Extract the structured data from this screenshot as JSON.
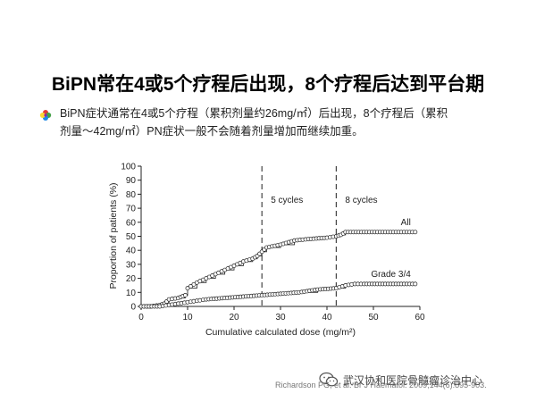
{
  "slide": {
    "title": "BiPN常在4或5个疗程后出现，8个疗程后达到平台期",
    "bullet_icon": "colorful-flower-bullet-icon",
    "bullet_lines": [
      "BiPN症状通常在4或5个疗程（累积剂量约26mg/㎡）后出现，8个疗程后（累积",
      "剂量～42mg/㎡）PN症状一般不会随着剂量增加而继续加重。"
    ],
    "citation": "Richardson PG, et al. Br J Haematol. 2009;144(6):895-903.",
    "watermark_text": "武汉协和医院骨髓瘤诊治中心",
    "watermark_icon": "wechat-icon"
  },
  "chart_data": {
    "type": "line",
    "title": "",
    "xlabel": "Cumulative calculated dose (mg/m²)",
    "ylabel": "Proportion of patients (%)",
    "xlim": [
      0,
      60
    ],
    "ylim": [
      0,
      100
    ],
    "x_ticks": [
      0,
      10,
      20,
      30,
      40,
      50,
      60
    ],
    "y_ticks": [
      0,
      10,
      20,
      30,
      40,
      50,
      60,
      70,
      80,
      90,
      100
    ],
    "marker": "open-circle",
    "grid": false,
    "reference_lines": [
      {
        "x": 26,
        "label": "5 cycles"
      },
      {
        "x": 42,
        "label": "8 cycles"
      }
    ],
    "series": [
      {
        "name": "All",
        "x": [
          0,
          2,
          4,
          5,
          6,
          8,
          9.5,
          10,
          12,
          14,
          16,
          18,
          20,
          22,
          24,
          25,
          26,
          27,
          30,
          33,
          36,
          40,
          42,
          43,
          44,
          48,
          52,
          56,
          59
        ],
        "y": [
          0,
          0,
          1,
          2,
          5,
          6,
          8,
          13,
          17,
          20,
          23,
          26,
          29,
          32,
          34,
          36,
          39,
          42,
          44,
          47,
          48,
          49,
          50,
          51,
          53,
          53,
          53,
          53,
          53
        ]
      },
      {
        "name": "Grade 3/4",
        "x": [
          0,
          4,
          6,
          8,
          10,
          12,
          14,
          18,
          22,
          26,
          30,
          34,
          38,
          42,
          44,
          46,
          48,
          52,
          56,
          59
        ],
        "y": [
          0,
          0,
          1,
          2,
          3,
          4,
          5,
          6,
          7,
          8,
          9,
          10,
          12,
          13,
          15,
          16,
          16,
          16,
          16,
          16
        ]
      }
    ]
  }
}
